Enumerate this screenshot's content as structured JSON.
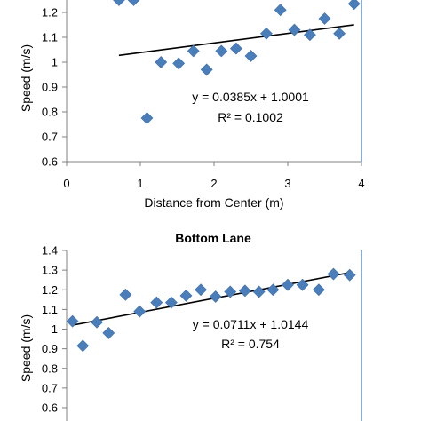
{
  "chart_data": [
    {
      "type": "scatter",
      "title": "",
      "xlabel": "Distance from Center (m)",
      "ylabel": "Speed (m/s)",
      "xlim": [
        0,
        4
      ],
      "ylim": [
        0.6,
        1.25
      ],
      "x_ticks": [
        "0",
        "1",
        "2",
        "3",
        "4"
      ],
      "y_ticks": [
        "0.6",
        "0.7",
        "0.8",
        "0.9",
        "1",
        "1.1",
        "1.2"
      ],
      "series": [
        {
          "points": [
            {
              "x": 0.71,
              "y": 1.25
            },
            {
              "x": 0.91,
              "y": 1.25
            },
            {
              "x": 1.09,
              "y": 0.775
            },
            {
              "x": 1.28,
              "y": 1.0
            },
            {
              "x": 1.52,
              "y": 0.995
            },
            {
              "x": 1.72,
              "y": 1.045
            },
            {
              "x": 1.9,
              "y": 0.97
            },
            {
              "x": 2.1,
              "y": 1.045
            },
            {
              "x": 2.3,
              "y": 1.055
            },
            {
              "x": 2.5,
              "y": 1.025
            },
            {
              "x": 2.71,
              "y": 1.115
            },
            {
              "x": 2.9,
              "y": 1.21
            },
            {
              "x": 3.09,
              "y": 1.13
            },
            {
              "x": 3.3,
              "y": 1.11
            },
            {
              "x": 3.5,
              "y": 1.175
            },
            {
              "x": 3.7,
              "y": 1.115
            },
            {
              "x": 3.9,
              "y": 1.235
            }
          ],
          "color": "#4a7ebb"
        }
      ],
      "trendline": {
        "slope": 0.0385,
        "intercept": 1.0001,
        "x_range": [
          0.71,
          3.9
        ]
      },
      "annotations": [
        "y = 0.0385x + 1.0001",
        "R² = 0.1002"
      ]
    },
    {
      "type": "scatter",
      "title": "Bottom Lane",
      "xlabel": "",
      "ylabel": "Speed (m/s)",
      "xlim": [
        0,
        4
      ],
      "ylim": [
        0.6,
        1.4
      ],
      "y_ticks": [
        "0.6",
        "0.7",
        "0.8",
        "0.9",
        "1",
        "1.1",
        "1.2",
        "1.3",
        "1.4"
      ],
      "series": [
        {
          "points": [
            {
              "x": 0.08,
              "y": 1.04
            },
            {
              "x": 0.22,
              "y": 0.915
            },
            {
              "x": 0.41,
              "y": 1.035
            },
            {
              "x": 0.57,
              "y": 0.98
            },
            {
              "x": 0.8,
              "y": 1.175
            },
            {
              "x": 0.99,
              "y": 1.09
            },
            {
              "x": 1.22,
              "y": 1.135
            },
            {
              "x": 1.42,
              "y": 1.135
            },
            {
              "x": 1.62,
              "y": 1.17
            },
            {
              "x": 1.82,
              "y": 1.2
            },
            {
              "x": 2.02,
              "y": 1.165
            },
            {
              "x": 2.22,
              "y": 1.19
            },
            {
              "x": 2.42,
              "y": 1.195
            },
            {
              "x": 2.61,
              "y": 1.19
            },
            {
              "x": 2.8,
              "y": 1.2
            },
            {
              "x": 3.0,
              "y": 1.225
            },
            {
              "x": 3.2,
              "y": 1.225
            },
            {
              "x": 3.42,
              "y": 1.2
            },
            {
              "x": 3.62,
              "y": 1.28
            },
            {
              "x": 3.84,
              "y": 1.275
            }
          ],
          "color": "#4a7ebb"
        }
      ],
      "trendline": {
        "slope": 0.0711,
        "intercept": 1.0144,
        "x_range": [
          0.08,
          3.84
        ]
      },
      "annotations": [
        "y = 0.0711x + 1.0144",
        "R² = 0.754"
      ]
    }
  ]
}
